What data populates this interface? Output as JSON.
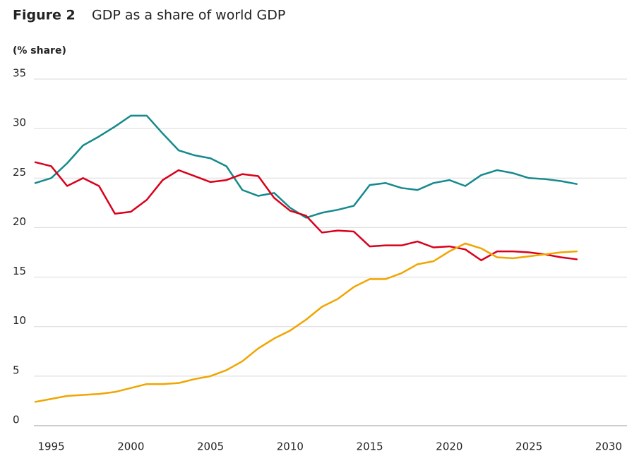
{
  "chart_data": {
    "type": "line",
    "figure_label": "Figure 2",
    "title": "GDP as a share of world GDP",
    "y_label": "(% share)",
    "x": [
      1994,
      1995,
      1996,
      1997,
      1998,
      1999,
      2000,
      2001,
      2002,
      2003,
      2004,
      2005,
      2006,
      2007,
      2008,
      2009,
      2010,
      2011,
      2012,
      2013,
      2014,
      2015,
      2016,
      2017,
      2018,
      2019,
      2020,
      2021,
      2022,
      2023,
      2024,
      2025,
      2026,
      2027,
      2028
    ],
    "series": [
      {
        "color": "#15898b",
        "values": [
          24.5,
          25.0,
          26.5,
          28.3,
          29.2,
          30.2,
          31.3,
          31.3,
          29.5,
          27.8,
          27.3,
          27.0,
          26.2,
          23.8,
          23.2,
          23.5,
          22.0,
          21.0,
          21.5,
          21.8,
          22.2,
          24.3,
          24.5,
          24.0,
          23.8,
          24.5,
          24.8,
          24.2,
          25.3,
          25.8,
          25.5,
          25.0,
          24.9,
          24.7,
          24.4
        ]
      },
      {
        "color": "#d9001b",
        "values": [
          26.6,
          26.2,
          24.2,
          25.0,
          24.2,
          21.4,
          21.6,
          22.8,
          24.8,
          25.8,
          25.2,
          24.6,
          24.8,
          25.4,
          25.2,
          23.0,
          21.7,
          21.2,
          19.5,
          19.7,
          19.6,
          18.1,
          18.2,
          18.2,
          18.6,
          18.0,
          18.1,
          17.8,
          16.7,
          17.6,
          17.6,
          17.5,
          17.3,
          17.0,
          16.8
        ]
      },
      {
        "color": "#f0a500",
        "values": [
          2.4,
          2.7,
          3.0,
          3.1,
          3.2,
          3.4,
          3.8,
          4.2,
          4.2,
          4.3,
          4.7,
          5.0,
          5.6,
          6.5,
          7.8,
          8.8,
          9.6,
          10.7,
          12.0,
          12.8,
          14.0,
          14.8,
          14.8,
          15.4,
          16.3,
          16.6,
          17.6,
          18.4,
          17.9,
          17.0,
          16.9,
          17.1,
          17.3,
          17.5,
          17.6
        ]
      }
    ],
    "xlim": [
      1994,
      2031
    ],
    "xticks": [
      1995,
      2000,
      2005,
      2010,
      2015,
      2020,
      2025,
      2030
    ],
    "ylim": [
      0,
      35
    ],
    "yticks": [
      0,
      5,
      10,
      15,
      20,
      25,
      30,
      35
    ],
    "grid": true
  }
}
